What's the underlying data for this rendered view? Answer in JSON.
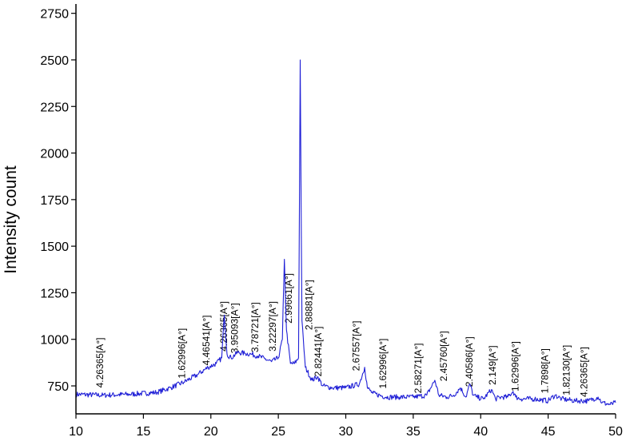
{
  "chart_data": {
    "type": "line",
    "title": "",
    "xlabel": "",
    "ylabel": "Intensity count",
    "xlim": [
      10,
      50
    ],
    "ylim": [
      600,
      2800
    ],
    "x_ticks": [
      "10",
      "15",
      "20",
      "25",
      "30",
      "35",
      "40",
      "45",
      "50"
    ],
    "y_ticks": [
      "750",
      "1000",
      "1250",
      "1500",
      "1750",
      "2000",
      "2250",
      "2500",
      "2750"
    ],
    "grid": false,
    "line_color": "#1f1fd6",
    "series": [
      {
        "x": [
          10,
          12,
          14,
          16,
          17,
          18,
          19,
          19.8,
          20.4,
          20.8,
          21.0,
          21.2,
          21.5,
          22.0,
          22.5,
          23.0,
          23.5,
          24.0,
          24.5,
          25.0,
          25.3,
          25.45,
          25.6,
          25.9,
          26.2,
          26.5,
          26.62,
          26.75,
          27.0,
          27.5,
          27.9,
          28.3,
          29.0,
          30.0,
          31.0,
          31.4,
          31.6,
          32.0,
          33.0,
          34.0,
          35.0,
          36.0,
          36.6,
          36.9,
          37.5,
          38.0,
          38.5,
          38.9,
          39.2,
          39.45,
          39.7,
          40.2,
          40.8,
          41.1,
          41.5,
          42.0,
          42.4,
          42.6,
          43.0,
          44.0,
          45.0,
          45.5,
          46.0,
          47.0,
          48.0,
          48.7,
          49.0,
          49.6,
          50.0
        ],
        "y": [
          705,
          700,
          705,
          715,
          740,
          770,
          810,
          850,
          870,
          900,
          1130,
          920,
          900,
          930,
          925,
          920,
          910,
          895,
          880,
          900,
          1000,
          1430,
          1050,
          870,
          870,
          900,
          2500,
          1100,
          850,
          780,
          800,
          750,
          740,
          740,
          760,
          850,
          740,
          710,
          690,
          690,
          690,
          700,
          780,
          700,
          690,
          700,
          740,
          690,
          760,
          700,
          690,
          680,
          730,
          680,
          690,
          690,
          720,
          690,
          680,
          680,
          670,
          700,
          680,
          670,
          670,
          690,
          660,
          650,
          660
        ]
      }
    ],
    "annotations": [
      {
        "text": "4.26365[A°]",
        "x": 12.0,
        "y": 740
      },
      {
        "text": "1.62996[A°]",
        "x": 18.1,
        "y": 790
      },
      {
        "text": "4.46541[A°]",
        "x": 19.9,
        "y": 860
      },
      {
        "text": "4.26365[A°]",
        "x": 21.2,
        "y": 935
      },
      {
        "text": "3.95093[A°]",
        "x": 22.0,
        "y": 925
      },
      {
        "text": "3.78721[A°]",
        "x": 23.5,
        "y": 930
      },
      {
        "text": "3.22297[A°]",
        "x": 24.8,
        "y": 935
      },
      {
        "text": "2.99661[A°]",
        "x": 26.0,
        "y": 1085
      },
      {
        "text": "2.88881[A°]",
        "x": 27.5,
        "y": 1050
      },
      {
        "text": "2.82441[A°]",
        "x": 28.2,
        "y": 800
      },
      {
        "text": "2.67557[A°]",
        "x": 31.0,
        "y": 830
      },
      {
        "text": "1.62996[A°]",
        "x": 33.0,
        "y": 735
      },
      {
        "text": "2.58271[A°]",
        "x": 35.6,
        "y": 710
      },
      {
        "text": "2.45760[A°]",
        "x": 37.5,
        "y": 775
      },
      {
        "text": "2.40586[A°]",
        "x": 39.4,
        "y": 745
      },
      {
        "text": "2.149[A°]",
        "x": 41.1,
        "y": 755
      },
      {
        "text": "1.62996[A°]",
        "x": 42.8,
        "y": 720
      },
      {
        "text": "1.7898[A°]",
        "x": 45.0,
        "y": 710
      },
      {
        "text": "1.82130[A°]",
        "x": 46.6,
        "y": 700
      },
      {
        "text": "4.26365[A°]",
        "x": 47.9,
        "y": 690
      }
    ]
  }
}
